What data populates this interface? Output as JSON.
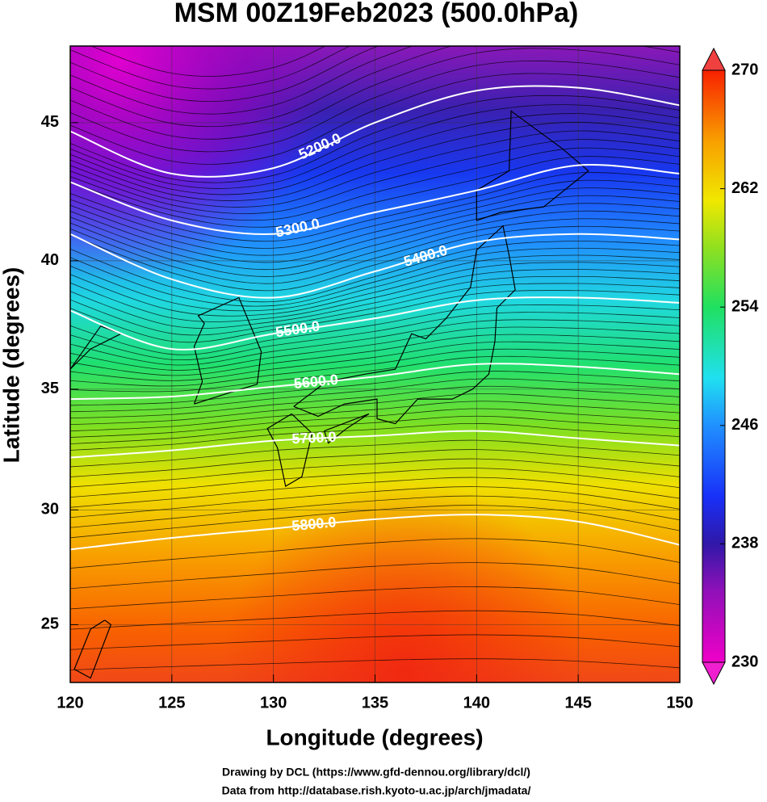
{
  "chart_data": {
    "type": "map",
    "title": "MSM 00Z19Feb2023 (500.0hPa)",
    "x_label": "Longitude (degrees)",
    "y_label": "Latitude  (degrees)",
    "projection": "mercator",
    "xlim": [
      120,
      150
    ],
    "ylim": [
      22.4,
      47.6
    ],
    "xticks": [
      120,
      125,
      130,
      135,
      140,
      145,
      150
    ],
    "yticks": [
      25,
      30,
      35,
      40,
      45
    ],
    "grid": true,
    "contour_color": "#ffffff",
    "contour_lons": [
      120,
      125,
      130,
      135,
      140,
      145,
      150
    ],
    "contours": [
      {
        "label": "5200.0",
        "lats": [
          44.7,
          43.2,
          43.4,
          45.0,
          46.1,
          46.2,
          45.6
        ]
      },
      {
        "label": "5300.0",
        "lats": [
          42.9,
          41.5,
          41.0,
          41.8,
          42.6,
          43.5,
          43.2
        ]
      },
      {
        "label": "5400.0",
        "lats": [
          41.0,
          39.3,
          38.6,
          39.6,
          40.7,
          41.0,
          40.8
        ]
      },
      {
        "label": "5500.0",
        "lats": [
          38.1,
          36.6,
          37.2,
          37.8,
          38.5,
          38.6,
          38.4
        ]
      },
      {
        "label": "5600.0",
        "lats": [
          34.6,
          34.7,
          35.1,
          35.5,
          36.0,
          35.9,
          35.6
        ]
      },
      {
        "label": "5700.0",
        "lats": [
          32.2,
          32.5,
          32.9,
          33.1,
          33.3,
          33.0,
          32.7
        ]
      },
      {
        "label": "5800.0",
        "lats": [
          28.3,
          28.8,
          29.2,
          29.6,
          29.8,
          29.5,
          28.5
        ]
      }
    ],
    "colorbar": {
      "lim": [
        230,
        270
      ],
      "ticks": [
        230,
        238,
        246,
        254,
        262,
        270
      ]
    },
    "credits": [
      "Drawing by DCL (https://www.gfd-dennou.org/library/dcl/)",
      "Data from http://database.rish.kyoto-u.ac.jp/arch/jmadata/"
    ]
  }
}
